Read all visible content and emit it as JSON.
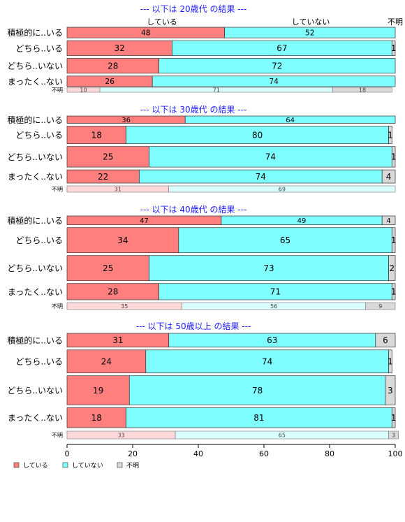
{
  "chart_data": {
    "type": "bar",
    "orientation": "horizontal",
    "stacked": true,
    "percent": true,
    "xlim": [
      0,
      100
    ],
    "xticks": [
      "0",
      "20",
      "40",
      "60",
      "80",
      "100"
    ],
    "header_labels": [
      "している",
      "していない",
      "不明"
    ],
    "legend": {
      "position": "bottom-left",
      "items": [
        {
          "label": "している",
          "color": "#FF7F7F"
        },
        {
          "label": "していない",
          "color": "#7FFFFF"
        },
        {
          "label": "不明",
          "color": "#D9D9D9"
        }
      ]
    },
    "series_colors": [
      "#FF7F7F",
      "#7FFFFF",
      "#D9D9D9"
    ],
    "na_colors": [
      "#FFD9D9",
      "#D9FFFF",
      "#D9D9D9"
    ],
    "panels": [
      {
        "title": "--- 以下は 20歳代 の結果 ---",
        "categories": [
          "積極的に..いる",
          "どちら..いる",
          "どちら..いない",
          "まったく..ない"
        ],
        "weights": [
          1,
          1.4,
          1.4,
          1
        ],
        "values": [
          [
            48,
            52,
            0
          ],
          [
            32,
            67,
            1
          ],
          [
            28,
            72,
            0
          ],
          [
            26,
            74,
            0
          ]
        ],
        "na_row": {
          "label": "不明",
          "values": [
            10,
            71,
            18
          ]
        }
      },
      {
        "title": "--- 以下は 30歳代 の結果 ---",
        "categories": [
          "積極的に..いる",
          "どちら..いる",
          "どちら..いない",
          "まったく..ない"
        ],
        "weights": [
          0.5,
          1.2,
          1.4,
          0.9
        ],
        "values": [
          [
            36,
            64,
            0
          ],
          [
            18,
            80,
            1
          ],
          [
            25,
            74,
            1
          ],
          [
            22,
            74,
            4
          ]
        ],
        "na_row": {
          "label": "不明",
          "values": [
            31,
            69,
            0
          ]
        }
      },
      {
        "title": "--- 以下は 40歳代 の結果 ---",
        "categories": [
          "積極的に..いる",
          "どちら..いる",
          "どちら..いない",
          "まったく..ない"
        ],
        "weights": [
          0.6,
          1.7,
          1.7,
          1.1
        ],
        "values": [
          [
            47,
            49,
            4
          ],
          [
            34,
            65,
            1
          ],
          [
            25,
            73,
            2
          ],
          [
            28,
            71,
            1
          ]
        ],
        "na_row": {
          "label": "不明",
          "values": [
            35,
            56,
            9
          ]
        }
      },
      {
        "title": "--- 以下は 50歳以上 の結果 ---",
        "categories": [
          "積極的に..いる",
          "どちら..いる",
          "どちら..いない",
          "まったく..ない"
        ],
        "weights": [
          0.9,
          1.5,
          1.9,
          1.3
        ],
        "values": [
          [
            31,
            63,
            6
          ],
          [
            24,
            74,
            1
          ],
          [
            19,
            78,
            3
          ],
          [
            18,
            81,
            1
          ]
        ],
        "na_row": {
          "label": "不明",
          "values": [
            33,
            65,
            3
          ]
        }
      }
    ]
  }
}
